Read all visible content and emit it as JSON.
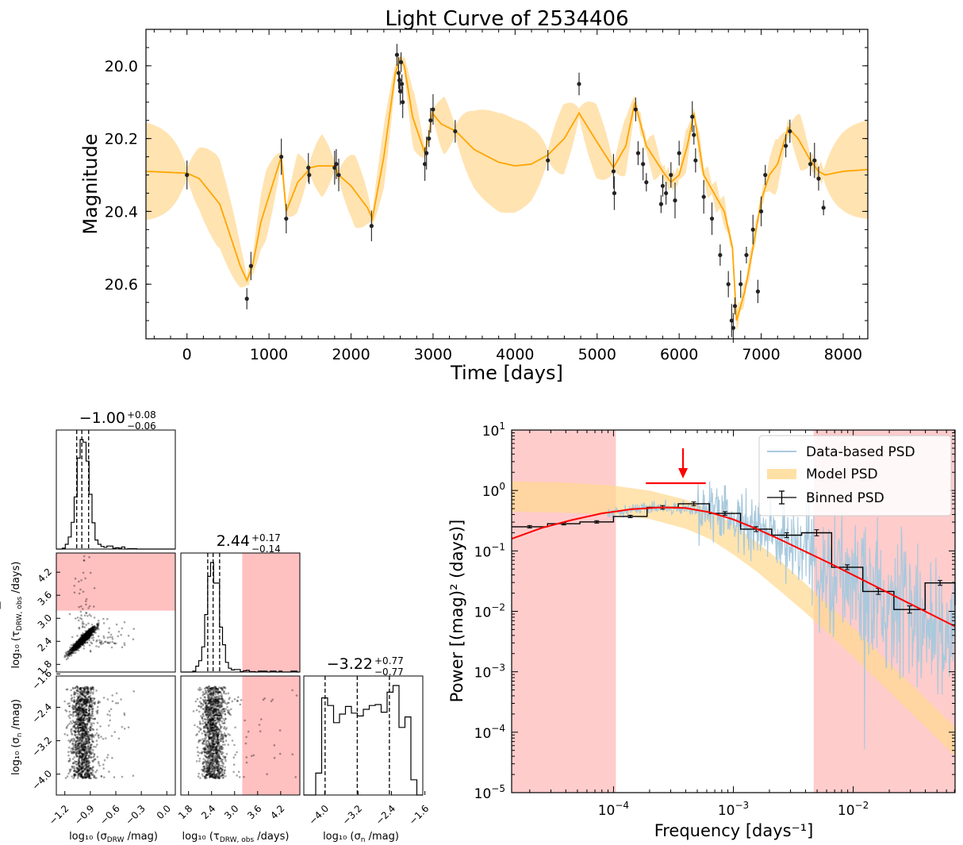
{
  "chart_data": [
    {
      "type": "line",
      "title": "Light Curve of 2534406",
      "xlabel": "Time [days]",
      "ylabel": "Magnitude",
      "xlim": [
        -500,
        8300
      ],
      "ylim": [
        20.75,
        19.9
      ],
      "y_inverted": true,
      "xticks": [
        "0",
        "1000",
        "2000",
        "3000",
        "4000",
        "5000",
        "6000",
        "7000",
        "8000"
      ],
      "yticks": [
        "20.0",
        "20.2",
        "20.4",
        "20.6"
      ],
      "series": [
        {
          "role": "model-mean",
          "color": "#ffa500",
          "x": [
            -500,
            0,
            150,
            400,
            650,
            730,
            800,
            900,
            1080,
            1150,
            1210,
            1350,
            1470,
            1500,
            1600,
            1800,
            1850,
            2000,
            2200,
            2260,
            2400,
            2540,
            2600,
            2650,
            2750,
            2900,
            2950,
            2990,
            3100,
            3280,
            3500,
            3800,
            4000,
            4200,
            4400,
            4600,
            4780,
            5000,
            5200,
            5350,
            5460,
            5600,
            5800,
            5900,
            6000,
            6100,
            6180,
            6300,
            6450,
            6550,
            6650,
            6700,
            6800,
            6900,
            7000,
            7100,
            7200,
            7330,
            7450,
            7600,
            7700,
            7780,
            8000,
            8300
          ],
          "y": [
            20.29,
            20.295,
            20.31,
            20.38,
            20.55,
            20.59,
            20.55,
            20.43,
            20.3,
            20.25,
            20.4,
            20.32,
            20.29,
            20.28,
            20.275,
            20.275,
            20.3,
            20.33,
            20.39,
            20.42,
            20.25,
            20.02,
            19.98,
            20.0,
            20.14,
            20.24,
            20.19,
            20.13,
            20.16,
            20.18,
            20.23,
            20.265,
            20.275,
            20.27,
            20.245,
            20.2,
            20.13,
            20.21,
            20.28,
            20.22,
            20.1,
            20.22,
            20.29,
            20.32,
            20.3,
            20.22,
            20.13,
            20.3,
            20.36,
            20.4,
            20.5,
            20.7,
            20.62,
            20.5,
            20.37,
            20.3,
            20.27,
            20.17,
            20.2,
            20.26,
            20.29,
            20.3,
            20.29,
            20.285
          ]
        },
        {
          "role": "observations",
          "color": "#333333",
          "x": [
            0,
            730,
            780,
            1150,
            1210,
            1480,
            1490,
            1800,
            1820,
            1850,
            2250,
            2560,
            2580,
            2590,
            2600,
            2610,
            2620,
            2630,
            2900,
            2920,
            2950,
            2970,
            3000,
            3270,
            4400,
            4780,
            5200,
            5210,
            5470,
            5500,
            5560,
            5600,
            5780,
            5800,
            5840,
            5900,
            5950,
            6000,
            6160,
            6180,
            6200,
            6300,
            6400,
            6500,
            6600,
            6640,
            6660,
            6680,
            6750,
            6820,
            6900,
            6960,
            7000,
            7050,
            7300,
            7350,
            7600,
            7650,
            7700,
            7760
          ],
          "y": [
            20.3,
            20.64,
            20.55,
            20.25,
            20.42,
            20.28,
            20.3,
            20.28,
            20.27,
            20.3,
            20.44,
            19.97,
            20.02,
            20.04,
            20.07,
            19.99,
            20.05,
            20.1,
            20.27,
            20.24,
            20.2,
            20.15,
            20.12,
            20.18,
            20.26,
            20.05,
            20.29,
            20.35,
            20.12,
            20.24,
            20.27,
            20.32,
            20.38,
            20.33,
            20.35,
            20.3,
            20.37,
            20.24,
            20.14,
            20.19,
            20.26,
            20.36,
            20.42,
            20.52,
            20.6,
            20.7,
            20.72,
            20.66,
            20.6,
            20.52,
            20.45,
            20.62,
            20.4,
            20.3,
            20.22,
            20.18,
            20.27,
            20.26,
            20.31,
            20.39
          ]
        }
      ]
    },
    {
      "type": "scatter",
      "subtype": "corner-plot",
      "parameters": [
        "log₁₀ (σ_DRW /mag)",
        "log₁₀ (τ_DRW,obs /days)",
        "log₁₀ (σ_n /mag)"
      ],
      "xlabels": [
        "log₁₀ (σ",
        "DRW",
        " /mag)",
        "log₁₀ (τ",
        "DRW, obs",
        " /days)",
        "log₁₀ (σ",
        "n",
        " /mag)"
      ],
      "marginal_titles": [
        {
          "value": "−1.00",
          "plus": "+0.08",
          "minus": "−0.06"
        },
        {
          "value": "2.44",
          "plus": "+0.17",
          "minus": "−0.14"
        },
        {
          "value": "−3.22",
          "plus": "+0.77",
          "minus": "−0.77"
        }
      ],
      "ranges": [
        [
          -1.3,
          0.1
        ],
        [
          1.6,
          4.7
        ],
        [
          -4.5,
          -1.65
        ]
      ],
      "ticks": [
        [
          "−1.2",
          "−0.9",
          "−0.6",
          "−0.3",
          "0.0"
        ],
        [
          "1.8",
          "2.4",
          "3.0",
          "3.6",
          "4.2"
        ],
        [
          "−4.0",
          "−3.2",
          "−2.4",
          "−1.6"
        ]
      ],
      "tick_values": [
        [
          -1.2,
          -0.9,
          -0.6,
          -0.3,
          0.0
        ],
        [
          1.8,
          2.4,
          3.0,
          3.6,
          4.2
        ],
        [
          -4.0,
          -3.2,
          -2.4,
          -1.6
        ]
      ],
      "quantiles": [
        [
          -1.06,
          -1.0,
          -0.92
        ],
        [
          2.3,
          2.44,
          2.61
        ],
        [
          -3.99,
          -3.22,
          -2.45
        ]
      ],
      "excluded_tau_above": 3.2,
      "shade_color": "#ffc0c0"
    },
    {
      "type": "line",
      "subtype": "psd",
      "xlabel": "Frequency [days⁻¹]",
      "ylabel": "Power [(mag)² (days)]",
      "x_log": true,
      "y_log": true,
      "xlim_log10": [
        -4.85,
        -1.15
      ],
      "ylim_log10": [
        -5,
        1
      ],
      "xticks": [
        {
          "base": "10",
          "exp": "−4"
        },
        {
          "base": "10",
          "exp": "−3"
        },
        {
          "base": "10",
          "exp": "−2"
        }
      ],
      "yticks": [
        {
          "base": "10",
          "exp": "−5"
        },
        {
          "base": "10",
          "exp": "−4"
        },
        {
          "base": "10",
          "exp": "−3"
        },
        {
          "base": "10",
          "exp": "−2"
        },
        {
          "base": "10",
          "exp": "−1"
        },
        {
          "base": "10",
          "exp": "0"
        },
        {
          "base": "10",
          "exp": "1"
        }
      ],
      "shaded_regions_log10": [
        [
          -4.85,
          -3.98
        ],
        [
          -2.33,
          -1.15
        ]
      ],
      "shade_color": "#ffaaaa",
      "arrow_frequency_log10": -3.42,
      "arrow_range_log10": [
        -3.73,
        -3.23
      ],
      "legend": [
        "Data-based PSD",
        "Model PSD",
        "Binned PSD"
      ],
      "legend_position": "top-right",
      "binned_psd": {
        "edges_log10": [
          -4.85,
          -4.55,
          -4.28,
          -4.0,
          -3.72,
          -3.46,
          -3.2,
          -2.94,
          -2.68,
          -2.43,
          -2.18,
          -1.92,
          -1.66,
          -1.4,
          -1.15
        ],
        "log10_power": [
          -0.6,
          -0.55,
          -0.52,
          -0.43,
          -0.28,
          -0.22,
          -0.38,
          -0.64,
          -0.74,
          -0.7,
          -1.27,
          -1.67,
          -1.97,
          -1.53,
          -1.9
        ],
        "log10_err": [
          0.02,
          0.02,
          0.02,
          0.02,
          0.03,
          0.03,
          0.03,
          0.04,
          0.04,
          0.05,
          0.04,
          0.05,
          0.06,
          0.04,
          0.06
        ]
      },
      "model_psd_band_log10": {
        "x": [
          -4.85,
          -4.4,
          -4.0,
          -3.7,
          -3.4,
          -3.2,
          -3.0,
          -2.8,
          -2.6,
          -2.4,
          -2.2,
          -2.0,
          -1.8,
          -1.6,
          -1.4,
          -1.15
        ],
        "lower": [
          -0.35,
          -0.37,
          -0.4,
          -0.47,
          -0.63,
          -0.8,
          -1.06,
          -1.35,
          -1.68,
          -2.02,
          -2.38,
          -2.75,
          -3.13,
          -3.52,
          -3.9,
          -4.4
        ],
        "upper": [
          0.15,
          0.13,
          0.08,
          0.0,
          -0.15,
          -0.32,
          -0.56,
          -0.86,
          -1.18,
          -1.54,
          -1.9,
          -2.27,
          -2.66,
          -3.05,
          -3.43,
          -3.92
        ]
      },
      "fit_line_log10": {
        "color": "#ff0000",
        "x": [
          -4.85,
          -4.6,
          -4.35,
          -4.1,
          -3.85,
          -3.6,
          -3.4,
          -3.2,
          -3.0,
          -2.8,
          -2.6,
          -2.4,
          -2.2,
          -2.0,
          -1.8,
          -1.6,
          -1.4,
          -1.15
        ],
        "y": [
          -0.8,
          -0.62,
          -0.49,
          -0.38,
          -0.31,
          -0.28,
          -0.29,
          -0.36,
          -0.48,
          -0.64,
          -0.82,
          -1.01,
          -1.2,
          -1.4,
          -1.6,
          -1.8,
          -2.0,
          -2.25
        ]
      },
      "data_psd_color": "#a9c9dd"
    }
  ]
}
